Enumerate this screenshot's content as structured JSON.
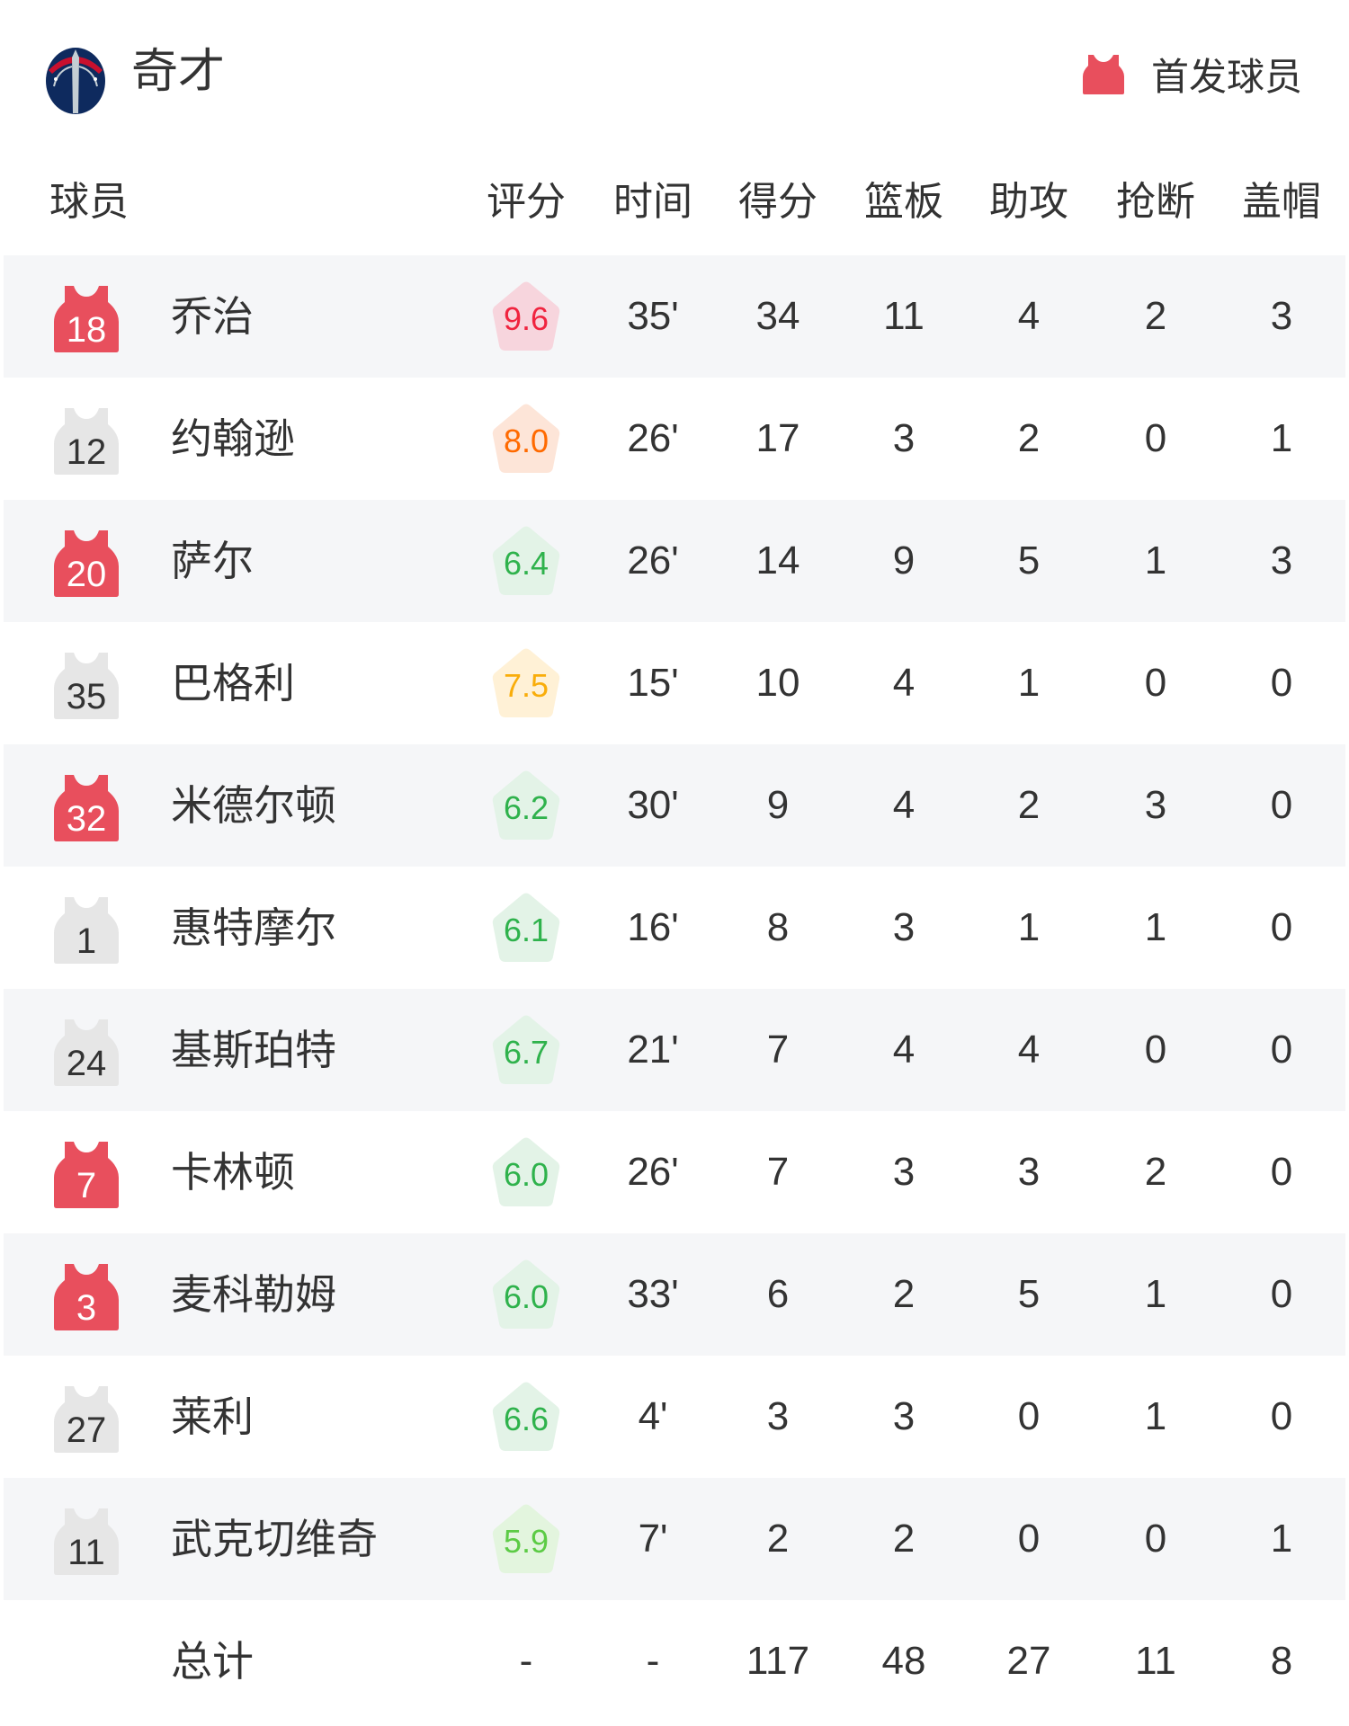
{
  "header": {
    "team_name": "奇才",
    "legend_label": "首发球员",
    "starter_color": "#e84f5d",
    "bench_color": "#e6e6e6"
  },
  "columns": {
    "player": "球员",
    "rating": "评分",
    "time": "时间",
    "points": "得分",
    "rebounds": "篮板",
    "assists": "助攻",
    "steals": "抢断",
    "blocks": "盖帽"
  },
  "players": [
    {
      "number": "18",
      "name": "乔治",
      "starter": true,
      "rating": "9.6",
      "time": "35'",
      "points": "34",
      "rebounds": "11",
      "assists": "4",
      "steals": "2",
      "blocks": "3"
    },
    {
      "number": "12",
      "name": "约翰逊",
      "starter": false,
      "rating": "8.0",
      "time": "26'",
      "points": "17",
      "rebounds": "3",
      "assists": "2",
      "steals": "0",
      "blocks": "1"
    },
    {
      "number": "20",
      "name": "萨尔",
      "starter": true,
      "rating": "6.4",
      "time": "26'",
      "points": "14",
      "rebounds": "9",
      "assists": "5",
      "steals": "1",
      "blocks": "3"
    },
    {
      "number": "35",
      "name": "巴格利",
      "starter": false,
      "rating": "7.5",
      "time": "15'",
      "points": "10",
      "rebounds": "4",
      "assists": "1",
      "steals": "0",
      "blocks": "0"
    },
    {
      "number": "32",
      "name": "米德尔顿",
      "starter": true,
      "rating": "6.2",
      "time": "30'",
      "points": "9",
      "rebounds": "4",
      "assists": "2",
      "steals": "3",
      "blocks": "0"
    },
    {
      "number": "1",
      "name": "惠特摩尔",
      "starter": false,
      "rating": "6.1",
      "time": "16'",
      "points": "8",
      "rebounds": "3",
      "assists": "1",
      "steals": "1",
      "blocks": "0"
    },
    {
      "number": "24",
      "name": "基斯珀特",
      "starter": false,
      "rating": "6.7",
      "time": "21'",
      "points": "7",
      "rebounds": "4",
      "assists": "4",
      "steals": "0",
      "blocks": "0"
    },
    {
      "number": "7",
      "name": "卡林顿",
      "starter": true,
      "rating": "6.0",
      "time": "26'",
      "points": "7",
      "rebounds": "3",
      "assists": "3",
      "steals": "2",
      "blocks": "0"
    },
    {
      "number": "3",
      "name": "麦科勒姆",
      "starter": true,
      "rating": "6.0",
      "time": "33'",
      "points": "6",
      "rebounds": "2",
      "assists": "5",
      "steals": "1",
      "blocks": "0"
    },
    {
      "number": "27",
      "name": "莱利",
      "starter": false,
      "rating": "6.6",
      "time": "4'",
      "points": "3",
      "rebounds": "3",
      "assists": "0",
      "steals": "1",
      "blocks": "0"
    },
    {
      "number": "11",
      "name": "武克切维奇",
      "starter": false,
      "rating": "5.9",
      "time": "7'",
      "points": "2",
      "rebounds": "2",
      "assists": "0",
      "steals": "0",
      "blocks": "1"
    }
  ],
  "totals": {
    "label": "总计",
    "rating": "-",
    "time": "-",
    "points": "117",
    "rebounds": "48",
    "assists": "27",
    "steals": "11",
    "blocks": "8"
  },
  "rating_colors": {
    "9": {
      "bg": "#f7d5dd",
      "text": "#f0243f"
    },
    "8": {
      "bg": "#fde5d8",
      "text": "#ff6a00"
    },
    "7": {
      "bg": "#fff1d6",
      "text": "#f9ad0a"
    },
    "6": {
      "bg": "#e3f3e7",
      "text": "#2fb24c"
    },
    "5": {
      "bg": "#e3f5de",
      "text": "#5ccb45"
    }
  }
}
